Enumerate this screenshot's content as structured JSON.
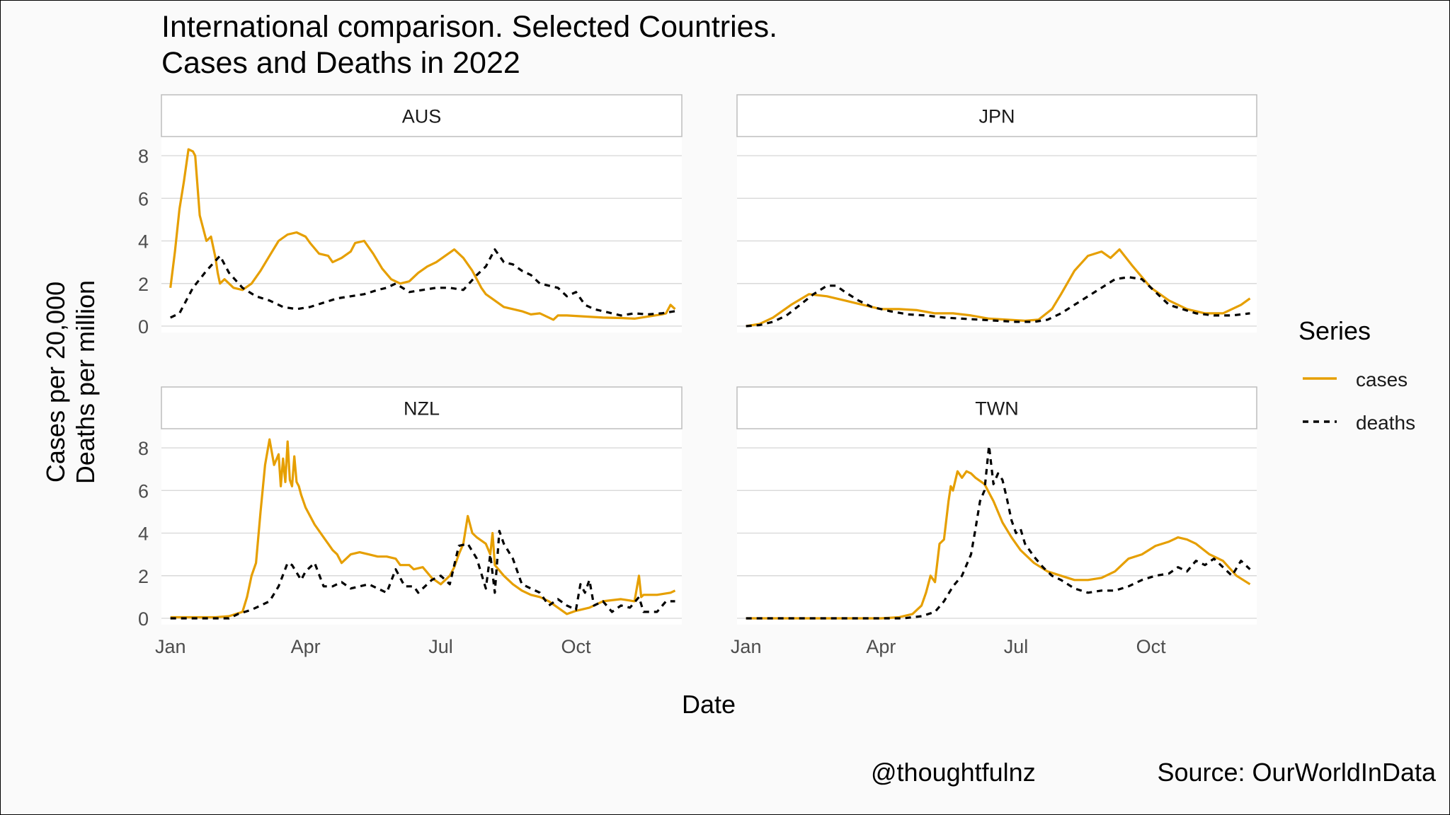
{
  "title_line1": "International comparison. Selected Countries.",
  "title_line2": "Cases and Deaths in 2022",
  "ylabel_line1": "Cases per 20,000",
  "ylabel_line2": "Deaths per million",
  "caption_left": "@thoughtfulnz",
  "caption_right": "Source: OurWorldInData",
  "legend_title": "Series",
  "colors": {
    "cases": "#E69F00",
    "deaths": "#000000",
    "grid": "#d9d9d9",
    "strip_border": "#bdbdbd"
  },
  "chart_data": {
    "type": "line",
    "title": "International comparison. Selected Countries. Cases and Deaths in 2022",
    "xlabel": "Date",
    "ylabel": "Cases per 20,000 / Deaths per million",
    "x_ticks": [
      "Jan",
      "Apr",
      "Jul",
      "Oct"
    ],
    "x_tick_months": [
      0,
      3,
      6,
      9
    ],
    "xlim_months": [
      -0.2,
      11.35
    ],
    "y_ticks": [
      0,
      2,
      4,
      6,
      8
    ],
    "ylim": [
      -0.3,
      8.9
    ],
    "grid": true,
    "legend_position": "right",
    "series_names": [
      "cases",
      "deaths"
    ],
    "panels": [
      {
        "name": "AUS",
        "cases": {
          "x": [
            0.0,
            0.1,
            0.2,
            0.3,
            0.4,
            0.5,
            0.55,
            0.65,
            0.8,
            0.9,
            1.0,
            1.05,
            1.1,
            1.2,
            1.4,
            1.6,
            1.8,
            2.0,
            2.2,
            2.4,
            2.6,
            2.8,
            3.0,
            3.1,
            3.3,
            3.5,
            3.6,
            3.8,
            4.0,
            4.1,
            4.3,
            4.5,
            4.7,
            4.9,
            5.1,
            5.3,
            5.5,
            5.7,
            5.9,
            6.1,
            6.3,
            6.5,
            6.7,
            6.9,
            7.0,
            7.2,
            7.4,
            7.6,
            7.8,
            8.0,
            8.2,
            8.5,
            8.6,
            8.8,
            9.2,
            9.6,
            10.0,
            10.3,
            10.6,
            10.9,
            11.0,
            11.1,
            11.2
          ],
          "y": [
            1.8,
            3.5,
            5.5,
            6.8,
            8.3,
            8.2,
            8.0,
            5.2,
            4.0,
            4.2,
            3.2,
            2.5,
            2.0,
            2.2,
            1.8,
            1.7,
            2.0,
            2.6,
            3.3,
            4.0,
            4.3,
            4.4,
            4.2,
            3.9,
            3.4,
            3.3,
            3.0,
            3.2,
            3.5,
            3.9,
            4.0,
            3.4,
            2.7,
            2.2,
            2.0,
            2.1,
            2.5,
            2.8,
            3.0,
            3.3,
            3.6,
            3.2,
            2.6,
            1.8,
            1.5,
            1.2,
            0.9,
            0.8,
            0.7,
            0.55,
            0.6,
            0.3,
            0.5,
            0.5,
            0.45,
            0.4,
            0.38,
            0.35,
            0.45,
            0.55,
            0.6,
            1.0,
            0.8
          ]
        },
        "deaths": {
          "x": [
            0.0,
            0.2,
            0.5,
            0.8,
            1.1,
            1.3,
            1.6,
            1.9,
            2.2,
            2.5,
            2.8,
            3.1,
            3.4,
            3.7,
            4.0,
            4.3,
            4.6,
            4.8,
            5.0,
            5.3,
            5.6,
            5.9,
            6.2,
            6.5,
            6.8,
            7.0,
            7.2,
            7.4,
            7.6,
            7.8,
            8.0,
            8.2,
            8.4,
            8.6,
            8.8,
            9.0,
            9.2,
            9.4,
            9.6,
            9.8,
            10.0,
            10.3,
            10.6,
            10.9,
            11.2
          ],
          "y": [
            0.4,
            0.6,
            1.8,
            2.6,
            3.3,
            2.5,
            1.8,
            1.4,
            1.2,
            0.9,
            0.8,
            0.9,
            1.1,
            1.3,
            1.4,
            1.5,
            1.7,
            1.8,
            2.0,
            1.6,
            1.7,
            1.8,
            1.8,
            1.7,
            2.4,
            2.8,
            3.6,
            3.0,
            2.9,
            2.6,
            2.4,
            2.0,
            1.9,
            1.8,
            1.4,
            1.6,
            1.0,
            0.8,
            0.7,
            0.6,
            0.5,
            0.6,
            0.55,
            0.6,
            0.7
          ]
        }
      },
      {
        "name": "JPN",
        "cases": {
          "x": [
            0.0,
            0.3,
            0.6,
            1.0,
            1.4,
            1.8,
            2.2,
            2.6,
            3.0,
            3.4,
            3.8,
            4.2,
            4.6,
            5.0,
            5.4,
            5.8,
            6.2,
            6.5,
            6.8,
            7.0,
            7.3,
            7.6,
            7.9,
            8.1,
            8.3,
            8.6,
            9.0,
            9.4,
            9.8,
            10.2,
            10.6,
            11.0,
            11.2
          ],
          "y": [
            0.0,
            0.1,
            0.4,
            1.0,
            1.5,
            1.4,
            1.2,
            1.0,
            0.8,
            0.8,
            0.75,
            0.6,
            0.6,
            0.5,
            0.35,
            0.3,
            0.25,
            0.3,
            0.8,
            1.5,
            2.6,
            3.3,
            3.5,
            3.2,
            3.6,
            2.8,
            1.8,
            1.2,
            0.8,
            0.6,
            0.6,
            1.0,
            1.3
          ]
        },
        "deaths": {
          "x": [
            0.0,
            0.3,
            0.6,
            0.9,
            1.2,
            1.5,
            1.8,
            2.0,
            2.2,
            2.5,
            2.8,
            3.2,
            3.6,
            4.0,
            4.4,
            4.8,
            5.2,
            5.6,
            6.0,
            6.4,
            6.7,
            7.0,
            7.3,
            7.6,
            7.9,
            8.2,
            8.5,
            8.8,
            9.1,
            9.4,
            9.7,
            10.0,
            10.4,
            10.8,
            11.2
          ],
          "y": [
            0.0,
            0.05,
            0.2,
            0.5,
            1.0,
            1.5,
            1.9,
            1.9,
            1.6,
            1.2,
            0.9,
            0.7,
            0.55,
            0.5,
            0.4,
            0.35,
            0.3,
            0.25,
            0.2,
            0.2,
            0.3,
            0.6,
            1.0,
            1.4,
            1.8,
            2.2,
            2.3,
            2.2,
            1.6,
            1.0,
            0.8,
            0.6,
            0.5,
            0.5,
            0.6
          ]
        }
      },
      {
        "name": "NZL",
        "cases": {
          "x": [
            0.0,
            1.0,
            1.3,
            1.6,
            1.7,
            1.8,
            1.9,
            2.0,
            2.1,
            2.2,
            2.3,
            2.4,
            2.45,
            2.5,
            2.55,
            2.6,
            2.65,
            2.7,
            2.75,
            2.8,
            2.85,
            2.9,
            3.0,
            3.2,
            3.4,
            3.5,
            3.6,
            3.7,
            3.8,
            3.9,
            4.0,
            4.2,
            4.4,
            4.6,
            4.8,
            5.0,
            5.1,
            5.3,
            5.4,
            5.6,
            5.8,
            6.0,
            6.2,
            6.3,
            6.4,
            6.5,
            6.6,
            6.7,
            6.8,
            7.0,
            7.1,
            7.15,
            7.2,
            7.4,
            7.6,
            7.8,
            8.0,
            8.2,
            8.4,
            8.6,
            8.8,
            9.0,
            9.3,
            9.6,
            10.0,
            10.3,
            10.4,
            10.45,
            10.5,
            10.8,
            11.1,
            11.2
          ],
          "y": [
            0.05,
            0.05,
            0.1,
            0.3,
            1.0,
            2.0,
            2.6,
            5.0,
            7.2,
            8.4,
            7.2,
            7.7,
            6.2,
            7.5,
            6.4,
            8.3,
            6.5,
            6.2,
            7.6,
            6.4,
            6.2,
            5.8,
            5.2,
            4.4,
            3.8,
            3.5,
            3.2,
            3.0,
            2.6,
            2.8,
            3.0,
            3.1,
            3.0,
            2.9,
            2.9,
            2.8,
            2.5,
            2.5,
            2.3,
            2.4,
            1.9,
            1.6,
            2.0,
            2.4,
            3.0,
            3.5,
            4.8,
            4.0,
            3.8,
            3.5,
            3.0,
            4.0,
            2.5,
            2.0,
            1.6,
            1.3,
            1.1,
            1.0,
            0.8,
            0.5,
            0.2,
            0.35,
            0.5,
            0.8,
            0.9,
            0.8,
            2.0,
            1.0,
            1.1,
            1.1,
            1.2,
            1.3
          ]
        },
        "deaths": {
          "x": [
            0.0,
            1.3,
            1.5,
            1.8,
            2.0,
            2.2,
            2.4,
            2.6,
            2.7,
            2.9,
            3.0,
            3.2,
            3.4,
            3.6,
            3.8,
            4.0,
            4.4,
            4.8,
            5.0,
            5.2,
            5.4,
            5.5,
            5.8,
            6.0,
            6.2,
            6.4,
            6.6,
            6.8,
            7.0,
            7.1,
            7.2,
            7.3,
            7.4,
            7.6,
            7.8,
            8.0,
            8.2,
            8.4,
            8.6,
            8.8,
            9.0,
            9.1,
            9.2,
            9.3,
            9.4,
            9.6,
            9.8,
            10.0,
            10.2,
            10.4,
            10.5,
            10.6,
            10.8,
            11.0,
            11.2
          ],
          "y": [
            0.0,
            0.0,
            0.2,
            0.4,
            0.6,
            0.8,
            1.5,
            2.6,
            2.5,
            1.8,
            2.2,
            2.6,
            1.5,
            1.5,
            1.7,
            1.4,
            1.6,
            1.2,
            2.3,
            1.5,
            1.5,
            1.2,
            1.8,
            2.0,
            1.6,
            3.4,
            3.5,
            2.8,
            1.4,
            3.0,
            1.2,
            4.1,
            3.5,
            2.8,
            1.6,
            1.4,
            1.2,
            0.6,
            0.9,
            0.6,
            0.4,
            1.6,
            1.2,
            1.8,
            0.6,
            0.8,
            0.3,
            0.6,
            0.5,
            1.0,
            0.3,
            0.3,
            0.3,
            0.8,
            0.8
          ]
        }
      },
      {
        "name": "TWN",
        "cases": {
          "x": [
            0.0,
            3.0,
            3.4,
            3.7,
            3.9,
            4.0,
            4.1,
            4.2,
            4.3,
            4.4,
            4.5,
            4.55,
            4.6,
            4.7,
            4.8,
            4.9,
            5.0,
            5.1,
            5.3,
            5.5,
            5.7,
            5.9,
            6.1,
            6.4,
            6.7,
            7.0,
            7.3,
            7.6,
            7.9,
            8.2,
            8.5,
            8.8,
            9.1,
            9.4,
            9.6,
            9.8,
            10.0,
            10.3,
            10.6,
            10.9,
            11.2
          ],
          "y": [
            0.0,
            0.0,
            0.05,
            0.2,
            0.6,
            1.2,
            2.0,
            1.7,
            3.5,
            3.7,
            5.5,
            6.2,
            6.0,
            6.9,
            6.6,
            6.9,
            6.8,
            6.6,
            6.3,
            5.5,
            4.5,
            3.8,
            3.2,
            2.6,
            2.2,
            2.0,
            1.8,
            1.8,
            1.9,
            2.2,
            2.8,
            3.0,
            3.4,
            3.6,
            3.8,
            3.7,
            3.5,
            3.0,
            2.7,
            2.0,
            1.6
          ]
        },
        "deaths": {
          "x": [
            0.0,
            3.5,
            3.9,
            4.2,
            4.4,
            4.6,
            4.8,
            5.0,
            5.1,
            5.2,
            5.3,
            5.4,
            5.5,
            5.6,
            5.7,
            5.8,
            5.9,
            6.0,
            6.1,
            6.2,
            6.4,
            6.6,
            6.8,
            7.0,
            7.3,
            7.6,
            7.9,
            8.2,
            8.5,
            8.8,
            9.1,
            9.4,
            9.6,
            9.8,
            10.0,
            10.2,
            10.4,
            10.6,
            10.8,
            11.0,
            11.2
          ],
          "y": [
            0.0,
            0.0,
            0.1,
            0.3,
            0.8,
            1.5,
            2.0,
            3.0,
            4.2,
            5.5,
            6.0,
            8.1,
            6.3,
            6.8,
            6.5,
            5.6,
            4.6,
            4.0,
            4.2,
            3.5,
            2.9,
            2.4,
            2.0,
            1.8,
            1.4,
            1.2,
            1.3,
            1.3,
            1.5,
            1.8,
            2.0,
            2.1,
            2.4,
            2.2,
            2.7,
            2.5,
            2.8,
            2.4,
            2.0,
            2.7,
            2.3
          ]
        }
      }
    ]
  }
}
